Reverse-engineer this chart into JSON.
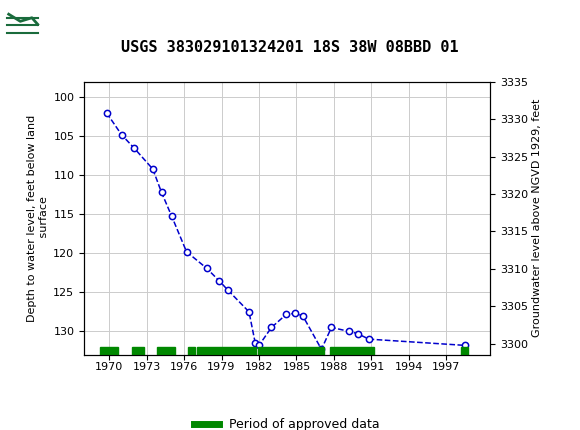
{
  "title": "USGS 383029101324201 18S 38W 08BBD 01",
  "xlabel_years": [
    1970,
    1973,
    1976,
    1979,
    1982,
    1985,
    1988,
    1991,
    1994,
    1997
  ],
  "ylabel_left": "Depth to water level, feet below land\n surface",
  "ylabel_right": "Groundwater level above NGVD 1929, feet",
  "ylim_left": [
    133,
    98
  ],
  "ylim_right_ticks": [
    3300,
    3305,
    3310,
    3315,
    3320,
    3325,
    3330,
    3335
  ],
  "yticks_left": [
    100,
    105,
    110,
    115,
    120,
    125,
    130
  ],
  "data_points": [
    [
      1969.8,
      102.0
    ],
    [
      1971.0,
      104.8
    ],
    [
      1972.0,
      106.5
    ],
    [
      1973.5,
      109.2
    ],
    [
      1974.2,
      112.2
    ],
    [
      1975.0,
      115.2
    ],
    [
      1976.2,
      119.8
    ],
    [
      1977.8,
      121.9
    ],
    [
      1978.8,
      123.5
    ],
    [
      1979.5,
      124.7
    ],
    [
      1981.2,
      127.5
    ],
    [
      1981.7,
      131.5
    ],
    [
      1982.0,
      131.8
    ],
    [
      1983.0,
      129.5
    ],
    [
      1984.2,
      127.8
    ],
    [
      1984.9,
      127.7
    ],
    [
      1985.5,
      128.0
    ],
    [
      1987.0,
      132.3
    ],
    [
      1987.8,
      129.5
    ],
    [
      1989.2,
      130.0
    ],
    [
      1989.9,
      130.3
    ],
    [
      1990.8,
      131.0
    ],
    [
      1998.5,
      131.8
    ]
  ],
  "approved_periods": [
    [
      1969.3,
      1970.7
    ],
    [
      1971.8,
      1972.8
    ],
    [
      1973.8,
      1975.3
    ],
    [
      1976.3,
      1976.9
    ],
    [
      1977.0,
      1981.8
    ],
    [
      1981.9,
      1987.2
    ],
    [
      1987.7,
      1991.2
    ],
    [
      1998.2,
      1998.7
    ]
  ],
  "line_color": "#0000CC",
  "marker_facecolor": "#ffffff",
  "marker_edgecolor": "#0000CC",
  "approved_color": "#008800",
  "header_bg_color": "#1a6b3c",
  "grid_color": "#cccccc",
  "background_color": "#ffffff",
  "xlim": [
    1968.0,
    2000.5
  ],
  "land_surface_elevation": 3431.5
}
